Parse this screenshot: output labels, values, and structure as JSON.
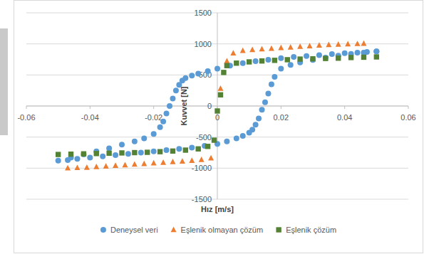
{
  "chart_data": {
    "type": "scatter",
    "x_label": "Hız [m/s]",
    "y_label": "Kuvvet [N]",
    "xlim": [
      -0.06,
      0.06
    ],
    "xticks": [
      -0.06,
      -0.04,
      -0.02,
      0,
      0.02,
      0.04,
      0.06
    ],
    "ylim": [
      -1500,
      1500
    ],
    "yticks": [
      -1500,
      -1000,
      -500,
      0,
      500,
      1000,
      1500
    ],
    "grid": true,
    "legend": "bottom",
    "series": [
      {
        "name": "Deneysel veri",
        "color": "#5b9bd5",
        "marker": "circle",
        "x": [
          0.05,
          0.047,
          0.044,
          0.04,
          0.036,
          0.032,
          0.028,
          0.024,
          0.02,
          0.016,
          0.012,
          0.008,
          0.004,
          0,
          -0.003,
          -0.006,
          -0.008,
          -0.01,
          -0.011,
          -0.012,
          -0.013,
          -0.014,
          -0.015,
          -0.016,
          -0.017,
          -0.018,
          -0.02,
          -0.023,
          -0.026,
          -0.03,
          -0.034,
          -0.038,
          -0.042,
          -0.046,
          -0.05,
          -0.047,
          -0.044,
          -0.04,
          -0.036,
          -0.032,
          -0.028,
          -0.024,
          -0.02,
          -0.016,
          -0.012,
          -0.008,
          -0.004,
          0,
          0.003,
          0.006,
          0.008,
          0.01,
          0.011,
          0.012,
          0.013,
          0.014,
          0.015,
          0.016,
          0.017,
          0.018,
          0.02,
          0.023,
          0.026,
          0.03,
          0.034,
          0.038,
          0.042,
          0.046,
          0.05
        ],
        "values": [
          880,
          870,
          860,
          850,
          835,
          820,
          805,
          790,
          770,
          745,
          720,
          690,
          650,
          600,
          560,
          520,
          490,
          450,
          410,
          340,
          250,
          120,
          0,
          -120,
          -250,
          -340,
          -450,
          -520,
          -570,
          -620,
          -680,
          -730,
          -780,
          -830,
          -880,
          -870,
          -850,
          -830,
          -810,
          -790,
          -770,
          -750,
          -730,
          -710,
          -690,
          -670,
          -640,
          -610,
          -570,
          -520,
          -480,
          -430,
          -380,
          -300,
          -200,
          -60,
          60,
          200,
          350,
          470,
          600,
          660,
          700,
          740,
          780,
          810,
          840,
          860,
          880
        ]
      },
      {
        "name": "Eşlenik olmayan çözüm",
        "color": "#ed7d31",
        "marker": "triangle",
        "x": [
          -0.047,
          -0.044,
          -0.041,
          -0.038,
          -0.035,
          -0.032,
          -0.029,
          -0.026,
          -0.023,
          -0.02,
          -0.017,
          -0.014,
          -0.011,
          -0.008,
          -0.005,
          -0.002,
          0.001,
          0.003,
          0.005,
          0.008,
          0.011,
          0.014,
          0.017,
          0.02,
          0.023,
          0.026,
          0.029,
          0.032,
          0.035,
          0.038,
          0.041,
          0.044,
          0.046
        ],
        "values": [
          -1000,
          -995,
          -990,
          -980,
          -970,
          -960,
          -950,
          -940,
          -930,
          -920,
          -910,
          -900,
          -890,
          -880,
          -865,
          -840,
          280,
          720,
          850,
          890,
          905,
          915,
          925,
          935,
          945,
          955,
          965,
          975,
          985,
          990,
          995,
          1000,
          1005
        ]
      },
      {
        "name": "Eşlenik çözüm",
        "color": "#548235",
        "marker": "square",
        "x": [
          -0.05,
          -0.046,
          -0.042,
          -0.038,
          -0.034,
          -0.03,
          -0.026,
          -0.022,
          -0.018,
          -0.014,
          -0.01,
          -0.006,
          -0.003,
          -0.001,
          0,
          0.001,
          0.002,
          0.003,
          0.006,
          0.01,
          0.014,
          0.018,
          0.022,
          0.026,
          0.03,
          0.034,
          0.038,
          0.042,
          0.046,
          0.05
        ],
        "values": [
          -780,
          -775,
          -770,
          -765,
          -760,
          -755,
          -750,
          -745,
          -735,
          -725,
          -710,
          -690,
          -650,
          -550,
          -80,
          180,
          540,
          650,
          690,
          710,
          725,
          735,
          745,
          755,
          760,
          765,
          770,
          780,
          785,
          790
        ]
      }
    ]
  }
}
